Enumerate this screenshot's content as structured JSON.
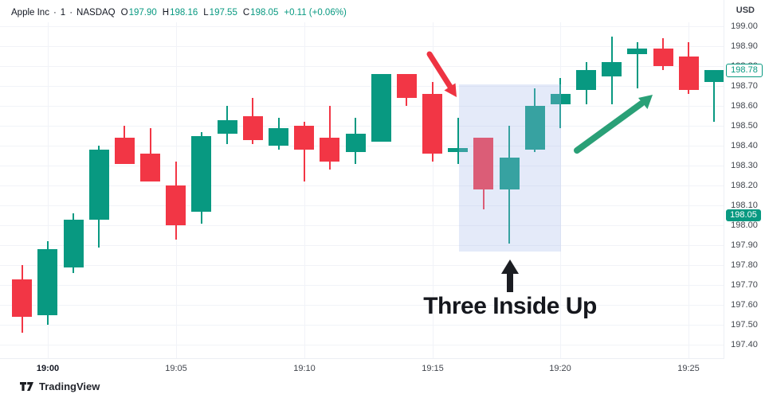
{
  "header": {
    "symbol": "Apple Inc",
    "interval": "1",
    "exchange": "NASDAQ",
    "separator": "·",
    "ohlc": [
      {
        "label": "O",
        "value": "197.90"
      },
      {
        "label": "H",
        "value": "198.16"
      },
      {
        "label": "L",
        "value": "197.55"
      },
      {
        "label": "C",
        "value": "198.05"
      }
    ],
    "change": "+0.11 (+0.06%)",
    "currency_label": "USD"
  },
  "colors": {
    "up": "#089981",
    "down": "#f23645",
    "red_arrow": "#ee3342",
    "green_arrow": "#2aa077",
    "black_arrow": "#1b1d22",
    "highlight": "rgba(164,184,236,0.30)",
    "badge_solid_bg": "#089981",
    "badge_solid_text": "#ffffff",
    "badge_outlined_border": "#089981",
    "badge_outlined_text": "#089981",
    "grid": "#f1f3f8"
  },
  "y_axis": {
    "labels": [
      "199.00",
      "198.90",
      "198.80",
      "198.70",
      "198.60",
      "198.50",
      "198.40",
      "198.30",
      "198.20",
      "198.10",
      "198.00",
      "197.90",
      "197.80",
      "197.70",
      "197.60",
      "197.50",
      "197.40"
    ],
    "badge_outlined": "198.78",
    "badge_solid": "198.05"
  },
  "x_axis": {
    "labels": [
      "19:00",
      "19:05",
      "19:10",
      "19:15",
      "19:20",
      "19:25"
    ],
    "bold_label": "19:00"
  },
  "annotations": {
    "pattern_label": "Three Inside Up"
  },
  "attribution": {
    "brand": "TradingView"
  },
  "chart_data": {
    "type": "candlestick",
    "title": "Apple Inc 1-minute candlestick chart (NASDAQ)",
    "y_unit": "USD",
    "ylim": [
      197.4,
      199.0
    ],
    "grid": true,
    "candles": [
      {
        "t": "18:59",
        "o": 197.73,
        "h": 197.8,
        "l": 197.46,
        "c": 197.54
      },
      {
        "t": "19:00",
        "o": 197.55,
        "h": 197.92,
        "l": 197.5,
        "c": 197.88
      },
      {
        "t": "19:01",
        "o": 197.79,
        "h": 198.06,
        "l": 197.76,
        "c": 198.03
      },
      {
        "t": "19:02",
        "o": 198.03,
        "h": 198.4,
        "l": 197.89,
        "c": 198.38
      },
      {
        "t": "19:03",
        "o": 198.44,
        "h": 198.5,
        "l": 198.31,
        "c": 198.31
      },
      {
        "t": "19:04",
        "o": 198.36,
        "h": 198.49,
        "l": 198.22,
        "c": 198.22
      },
      {
        "t": "19:05",
        "o": 198.2,
        "h": 198.32,
        "l": 197.93,
        "c": 198.0
      },
      {
        "t": "19:06",
        "o": 198.07,
        "h": 198.47,
        "l": 198.01,
        "c": 198.45
      },
      {
        "t": "19:07",
        "o": 198.46,
        "h": 198.6,
        "l": 198.41,
        "c": 198.53
      },
      {
        "t": "19:08",
        "o": 198.55,
        "h": 198.64,
        "l": 198.41,
        "c": 198.43
      },
      {
        "t": "19:09",
        "o": 198.4,
        "h": 198.54,
        "l": 198.38,
        "c": 198.49
      },
      {
        "t": "19:10",
        "o": 198.5,
        "h": 198.52,
        "l": 198.22,
        "c": 198.38
      },
      {
        "t": "19:11",
        "o": 198.44,
        "h": 198.6,
        "l": 198.28,
        "c": 198.32
      },
      {
        "t": "19:12",
        "o": 198.37,
        "h": 198.54,
        "l": 198.31,
        "c": 198.46
      },
      {
        "t": "19:13",
        "o": 198.42,
        "h": 198.76,
        "l": 198.42,
        "c": 198.76
      },
      {
        "t": "19:14",
        "o": 198.76,
        "h": 198.76,
        "l": 198.6,
        "c": 198.64
      },
      {
        "t": "19:15",
        "o": 198.66,
        "h": 198.72,
        "l": 198.32,
        "c": 198.36
      },
      {
        "t": "19:16",
        "o": 198.37,
        "h": 198.54,
        "l": 198.31,
        "c": 198.39
      },
      {
        "t": "19:17",
        "o": 198.44,
        "h": 198.44,
        "l": 198.08,
        "c": 198.18
      },
      {
        "t": "19:18",
        "o": 198.18,
        "h": 198.5,
        "l": 197.91,
        "c": 198.34
      },
      {
        "t": "19:19",
        "o": 198.38,
        "h": 198.69,
        "l": 198.37,
        "c": 198.6
      },
      {
        "t": "19:20",
        "o": 198.61,
        "h": 198.74,
        "l": 198.49,
        "c": 198.66
      },
      {
        "t": "19:21",
        "o": 198.68,
        "h": 198.82,
        "l": 198.61,
        "c": 198.78
      },
      {
        "t": "19:22",
        "o": 198.75,
        "h": 198.95,
        "l": 198.61,
        "c": 198.82
      },
      {
        "t": "19:23",
        "o": 198.86,
        "h": 198.92,
        "l": 198.69,
        "c": 198.89
      },
      {
        "t": "19:24",
        "o": 198.89,
        "h": 198.94,
        "l": 198.78,
        "c": 198.8
      },
      {
        "t": "19:25",
        "o": 198.85,
        "h": 198.92,
        "l": 198.66,
        "c": 198.68
      },
      {
        "t": "19:26",
        "o": 198.72,
        "h": 198.78,
        "l": 198.52,
        "c": 198.78
      }
    ],
    "pattern": {
      "name": "Three Inside Up",
      "candle_times": [
        "19:17",
        "19:18",
        "19:19"
      ],
      "highlight": {
        "from": "19:16",
        "to": "19:20",
        "top_price": 198.71,
        "bottom_price": 197.87
      }
    }
  }
}
